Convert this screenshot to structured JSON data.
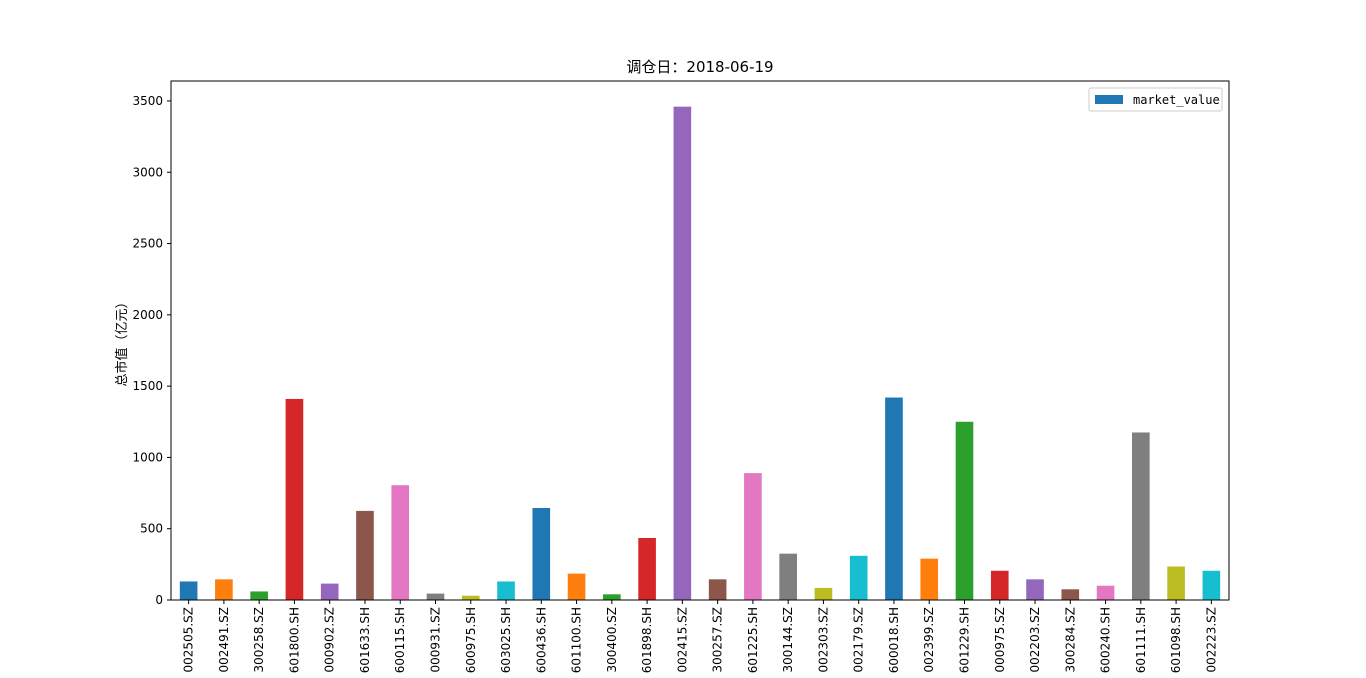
{
  "chart_data": {
    "type": "bar",
    "title": "调仓日：2018-06-19",
    "ylabel": "总市值（亿元）",
    "xlabel": "",
    "ylim": [
      0,
      3640
    ],
    "yticks": [
      0,
      500,
      1000,
      1500,
      2000,
      2500,
      3000,
      3500
    ],
    "grid": false,
    "legend": {
      "position": "top-right",
      "entries": [
        {
          "label": "market_value",
          "color": "#1f77b4"
        }
      ]
    },
    "categories": [
      "002505.SZ",
      "002491.SZ",
      "300258.SZ",
      "601800.SH",
      "000902.SZ",
      "601633.SH",
      "600115.SH",
      "000931.SZ",
      "600975.SH",
      "603025.SH",
      "600436.SH",
      "601100.SH",
      "300400.SZ",
      "601898.SH",
      "002415.SZ",
      "300257.SZ",
      "601225.SH",
      "300144.SZ",
      "002303.SZ",
      "002179.SZ",
      "600018.SH",
      "002399.SZ",
      "601229.SH",
      "000975.SZ",
      "002203.SZ",
      "300284.SZ",
      "600240.SH",
      "601111.SH",
      "601098.SH",
      "002223.SZ"
    ],
    "series": [
      {
        "name": "market_value",
        "values": [
          130,
          145,
          60,
          1410,
          115,
          625,
          805,
          45,
          30,
          130,
          645,
          185,
          40,
          435,
          3460,
          145,
          890,
          325,
          85,
          310,
          1420,
          290,
          1250,
          205,
          145,
          75,
          100,
          1175,
          235,
          205
        ]
      }
    ],
    "bar_colors": [
      "#1f77b4",
      "#ff7f0e",
      "#2ca02c",
      "#d62728",
      "#9467bd",
      "#8c564b",
      "#e377c2",
      "#7f7f7f",
      "#bcbd22",
      "#17becf"
    ]
  }
}
